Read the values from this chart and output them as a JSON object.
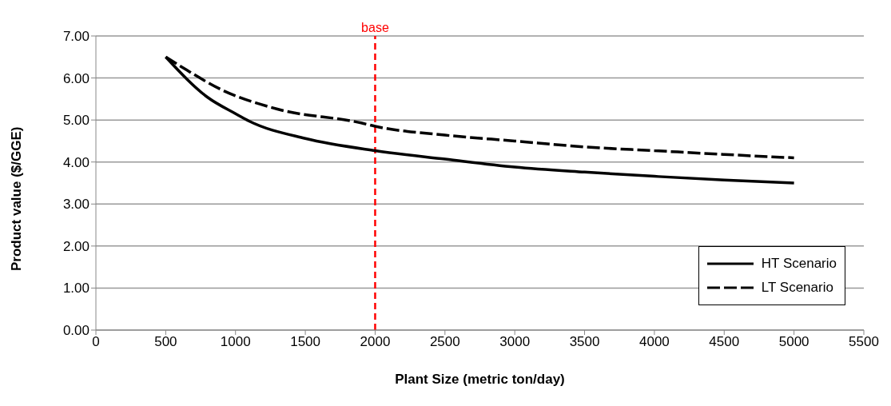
{
  "chart_data": {
    "type": "line",
    "xlabel": "Plant Size (metric ton/day)",
    "ylabel": "Product value  ($/GGE)",
    "series": [
      {
        "name": "HT Scenario",
        "color": "#000000",
        "line_style": "solid",
        "x": [
          500,
          800,
          1000,
          1100,
          1500,
          2000,
          2500,
          3000,
          3500,
          4000,
          4500,
          5000
        ],
        "values": [
          6.5,
          5.54,
          5.15,
          4.97,
          4.56,
          4.27,
          4.07,
          3.88,
          3.76,
          3.66,
          3.57,
          3.5
        ]
      },
      {
        "name": "LT Scenario",
        "color": "#000000",
        "line_style": "dashed",
        "x": [
          500,
          650,
          900,
          1300,
          1900,
          2000,
          2500,
          3000,
          3500,
          4000,
          4500,
          5000
        ],
        "values": [
          6.5,
          6.19,
          5.72,
          5.26,
          4.93,
          4.85,
          4.64,
          4.5,
          4.36,
          4.27,
          4.18,
          4.1
        ]
      }
    ],
    "xlim": [
      0,
      5500
    ],
    "xticks": [
      0,
      500,
      1000,
      1500,
      2000,
      2500,
      3000,
      3500,
      4000,
      4500,
      5000,
      5500
    ],
    "ylim": [
      0,
      7
    ],
    "yticks": [
      {
        "value": 0,
        "label": "0.00"
      },
      {
        "value": 1,
        "label": "1.00"
      },
      {
        "value": 2,
        "label": "2.00"
      },
      {
        "value": 3,
        "label": "3.00"
      },
      {
        "value": 4,
        "label": "4.00"
      },
      {
        "value": 5,
        "label": "5.00"
      },
      {
        "value": 6,
        "label": "6.00"
      },
      {
        "value": 7,
        "label": "7.00"
      }
    ],
    "ref_lines": [
      {
        "axis": "x",
        "value": 2000,
        "label": "base",
        "color": "#ff0000",
        "line_style": "dashed"
      }
    ],
    "grid": "y",
    "legend": "bottom right",
    "marker": "none"
  }
}
